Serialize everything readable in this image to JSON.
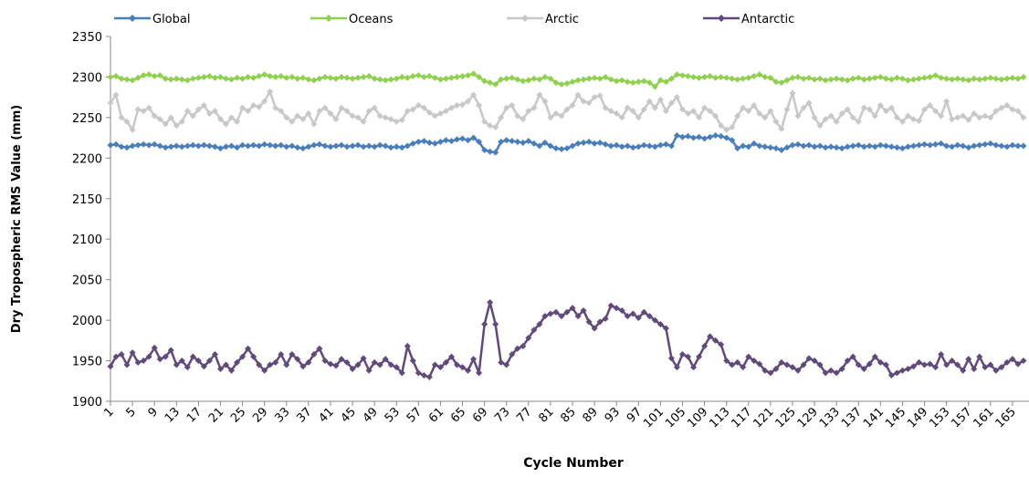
{
  "chart_data": {
    "type": "line",
    "x_label": "Cycle Number",
    "y_label": "Dry Tropospheric RMS Value (mm)",
    "x": [
      1,
      2,
      3,
      4,
      5,
      6,
      7,
      8,
      9,
      10,
      11,
      12,
      13,
      14,
      15,
      16,
      17,
      18,
      19,
      20,
      21,
      22,
      23,
      24,
      25,
      26,
      27,
      28,
      29,
      30,
      31,
      32,
      33,
      34,
      35,
      36,
      37,
      38,
      39,
      40,
      41,
      42,
      43,
      44,
      45,
      46,
      47,
      48,
      49,
      50,
      51,
      52,
      53,
      54,
      55,
      56,
      57,
      58,
      59,
      60,
      61,
      62,
      63,
      64,
      65,
      66,
      67,
      68,
      69,
      70,
      71,
      72,
      73,
      74,
      75,
      76,
      77,
      78,
      79,
      80,
      81,
      82,
      83,
      84,
      85,
      86,
      87,
      88,
      89,
      90,
      91,
      92,
      93,
      94,
      95,
      96,
      97,
      98,
      99,
      100,
      101,
      102,
      103,
      104,
      105,
      106,
      107,
      108,
      109,
      110,
      111,
      112,
      113,
      114,
      115,
      116,
      117,
      118,
      119,
      120,
      121,
      122,
      123,
      124,
      125,
      126,
      127,
      128,
      129,
      130,
      131,
      132,
      133,
      134,
      135,
      136,
      137,
      138,
      139,
      140,
      141,
      142,
      143,
      144,
      145,
      146,
      147,
      148,
      149,
      150,
      151,
      152,
      153,
      154,
      155,
      156,
      157,
      158,
      159,
      160,
      161,
      162,
      163,
      164,
      165,
      166,
      167
    ],
    "xlim": [
      1,
      168
    ],
    "xticks": [
      1,
      5,
      9,
      13,
      17,
      21,
      25,
      29,
      33,
      37,
      41,
      45,
      49,
      53,
      57,
      61,
      65,
      69,
      73,
      77,
      81,
      85,
      89,
      93,
      97,
      101,
      105,
      109,
      113,
      117,
      121,
      125,
      129,
      133,
      137,
      141,
      145,
      149,
      153,
      157,
      161,
      165
    ],
    "ylim": [
      1900,
      2350
    ],
    "yticks": [
      1900,
      1950,
      2000,
      2050,
      2100,
      2150,
      2200,
      2250,
      2300,
      2350
    ],
    "legend": "top",
    "series": [
      {
        "name": "Global",
        "color": "#4a7ebb",
        "values": [
          2216,
          2217,
          2214,
          2213,
          2215,
          2216,
          2217,
          2216,
          2217,
          2215,
          2213,
          2214,
          2215,
          2214,
          2215,
          2216,
          2215,
          2216,
          2215,
          2214,
          2212,
          2214,
          2215,
          2213,
          2216,
          2215,
          2216,
          2215,
          2217,
          2216,
          2215,
          2216,
          2214,
          2215,
          2213,
          2212,
          2214,
          2216,
          2217,
          2215,
          2214,
          2215,
          2216,
          2214,
          2215,
          2216,
          2214,
          2215,
          2214,
          2216,
          2215,
          2213,
          2214,
          2213,
          2215,
          2218,
          2220,
          2221,
          2219,
          2218,
          2220,
          2222,
          2221,
          2223,
          2224,
          2222,
          2225,
          2220,
          2210,
          2208,
          2207,
          2220,
          2222,
          2221,
          2220,
          2219,
          2221,
          2218,
          2215,
          2219,
          2215,
          2212,
          2211,
          2212,
          2215,
          2218,
          2219,
          2220,
          2218,
          2219,
          2217,
          2215,
          2216,
          2214,
          2215,
          2213,
          2214,
          2216,
          2215,
          2214,
          2216,
          2217,
          2215,
          2228,
          2226,
          2227,
          2225,
          2226,
          2224,
          2226,
          2228,
          2227,
          2225,
          2222,
          2212,
          2215,
          2214,
          2218,
          2215,
          2214,
          2213,
          2212,
          2210,
          2213,
          2216,
          2217,
          2215,
          2216,
          2214,
          2215,
          2213,
          2214,
          2213,
          2212,
          2214,
          2215,
          2216,
          2214,
          2215,
          2214,
          2216,
          2215,
          2214,
          2213,
          2212,
          2214,
          2215,
          2216,
          2217,
          2216,
          2217,
          2218,
          2215,
          2214,
          2216,
          2215,
          2213,
          2215,
          2216,
          2217,
          2218,
          2216,
          2215,
          2214,
          2216,
          2215,
          2215
        ]
      },
      {
        "name": "Oceans",
        "color": "#8fd14f",
        "values": [
          2300,
          2301,
          2298,
          2297,
          2296,
          2299,
          2302,
          2303,
          2301,
          2302,
          2298,
          2297,
          2298,
          2297,
          2296,
          2298,
          2299,
          2300,
          2301,
          2299,
          2300,
          2298,
          2297,
          2299,
          2298,
          2300,
          2299,
          2301,
          2303,
          2301,
          2300,
          2301,
          2299,
          2300,
          2298,
          2299,
          2297,
          2296,
          2298,
          2300,
          2299,
          2298,
          2300,
          2299,
          2298,
          2299,
          2300,
          2301,
          2298,
          2297,
          2296,
          2297,
          2298,
          2300,
          2299,
          2301,
          2302,
          2300,
          2301,
          2299,
          2297,
          2298,
          2299,
          2300,
          2301,
          2302,
          2304,
          2300,
          2295,
          2293,
          2291,
          2297,
          2298,
          2299,
          2297,
          2295,
          2296,
          2298,
          2297,
          2300,
          2298,
          2293,
          2291,
          2292,
          2294,
          2296,
          2297,
          2298,
          2299,
          2298,
          2300,
          2297,
          2295,
          2296,
          2294,
          2293,
          2294,
          2295,
          2293,
          2288,
          2296,
          2294,
          2298,
          2303,
          2302,
          2301,
          2300,
          2299,
          2300,
          2301,
          2299,
          2300,
          2299,
          2298,
          2297,
          2298,
          2299,
          2301,
          2303,
          2300,
          2299,
          2294,
          2293,
          2296,
          2299,
          2300,
          2298,
          2299,
          2297,
          2298,
          2296,
          2297,
          2298,
          2297,
          2296,
          2298,
          2299,
          2297,
          2298,
          2299,
          2300,
          2298,
          2297,
          2299,
          2298,
          2296,
          2297,
          2298,
          2299,
          2300,
          2302,
          2299,
          2298,
          2297,
          2298,
          2297,
          2296,
          2298,
          2297,
          2298,
          2299,
          2298,
          2297,
          2298,
          2299,
          2298,
          2300
        ]
      },
      {
        "name": "Arctic",
        "color": "#c8c8c8",
        "values": [
          2268,
          2278,
          2250,
          2245,
          2235,
          2260,
          2258,
          2262,
          2252,
          2248,
          2242,
          2250,
          2240,
          2245,
          2258,
          2252,
          2260,
          2265,
          2255,
          2258,
          2248,
          2242,
          2250,
          2245,
          2262,
          2258,
          2265,
          2263,
          2270,
          2282,
          2262,
          2258,
          2250,
          2245,
          2252,
          2248,
          2255,
          2242,
          2258,
          2262,
          2255,
          2248,
          2262,
          2258,
          2252,
          2250,
          2245,
          2258,
          2262,
          2252,
          2250,
          2248,
          2245,
          2247,
          2258,
          2260,
          2265,
          2262,
          2256,
          2252,
          2255,
          2258,
          2262,
          2265,
          2266,
          2270,
          2278,
          2265,
          2245,
          2240,
          2238,
          2250,
          2262,
          2265,
          2252,
          2248,
          2258,
          2262,
          2278,
          2270,
          2250,
          2255,
          2252,
          2260,
          2265,
          2278,
          2270,
          2268,
          2275,
          2277,
          2262,
          2258,
          2255,
          2250,
          2262,
          2258,
          2250,
          2260,
          2270,
          2262,
          2272,
          2258,
          2268,
          2275,
          2260,
          2255,
          2258,
          2250,
          2262,
          2258,
          2252,
          2240,
          2235,
          2238,
          2252,
          2262,
          2258,
          2265,
          2255,
          2250,
          2258,
          2245,
          2236,
          2260,
          2280,
          2252,
          2262,
          2268,
          2250,
          2240,
          2248,
          2252,
          2245,
          2255,
          2260,
          2250,
          2245,
          2262,
          2260,
          2252,
          2265,
          2258,
          2262,
          2250,
          2245,
          2252,
          2248,
          2246,
          2260,
          2265,
          2258,
          2252,
          2270,
          2248,
          2250,
          2252,
          2247,
          2255,
          2250,
          2252,
          2250,
          2258,
          2262,
          2265,
          2260,
          2258,
          2250
        ]
      },
      {
        "name": "Antarctic",
        "color": "#604a7b",
        "values": [
          1943,
          1955,
          1958,
          1945,
          1960,
          1948,
          1950,
          1955,
          1966,
          1952,
          1955,
          1963,
          1945,
          1950,
          1942,
          1955,
          1950,
          1943,
          1950,
          1958,
          1940,
          1945,
          1938,
          1948,
          1955,
          1965,
          1955,
          1945,
          1938,
          1945,
          1948,
          1958,
          1945,
          1958,
          1952,
          1943,
          1948,
          1958,
          1965,
          1950,
          1946,
          1944,
          1952,
          1948,
          1940,
          1945,
          1953,
          1938,
          1948,
          1945,
          1952,
          1945,
          1942,
          1935,
          1968,
          1950,
          1935,
          1932,
          1930,
          1945,
          1942,
          1948,
          1955,
          1945,
          1942,
          1938,
          1952,
          1935,
          1995,
          2022,
          1995,
          1948,
          1945,
          1958,
          1965,
          1968,
          1978,
          1988,
          1995,
          2005,
          2008,
          2010,
          2005,
          2010,
          2015,
          2005,
          2012,
          1998,
          1990,
          1998,
          2002,
          2018,
          2015,
          2012,
          2005,
          2008,
          2003,
          2010,
          2005,
          2000,
          1995,
          1990,
          1953,
          1942,
          1958,
          1955,
          1942,
          1955,
          1968,
          1980,
          1975,
          1970,
          1950,
          1945,
          1948,
          1942,
          1955,
          1950,
          1946,
          1938,
          1935,
          1940,
          1948,
          1945,
          1942,
          1938,
          1945,
          1953,
          1950,
          1945,
          1935,
          1938,
          1935,
          1940,
          1950,
          1955,
          1945,
          1940,
          1946,
          1955,
          1948,
          1945,
          1932,
          1935,
          1938,
          1940,
          1943,
          1948,
          1945,
          1946,
          1942,
          1958,
          1945,
          1950,
          1945,
          1938,
          1952,
          1940,
          1955,
          1942,
          1945,
          1938,
          1942,
          1948,
          1952,
          1946,
          1950
        ]
      }
    ]
  }
}
